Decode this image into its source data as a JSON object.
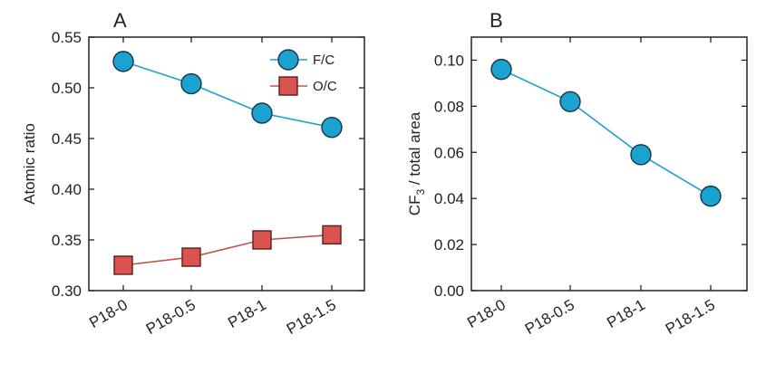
{
  "chart_data": [
    {
      "type": "line",
      "panel_label": "A",
      "ylabel": "Atomic ratio",
      "categories": [
        "P18-0",
        "P18-0.5",
        "P18-1",
        "P18-1.5"
      ],
      "ylim": [
        0.3,
        0.55
      ],
      "yticks": [
        0.3,
        0.35,
        0.4,
        0.45,
        0.5,
        0.55
      ],
      "ytick_labels": [
        "0.30",
        "0.35",
        "0.40",
        "0.45",
        "0.50",
        "0.55"
      ],
      "grid": false,
      "legend_position": "top-right",
      "series": [
        {
          "name": "F/C",
          "marker": "circle",
          "color": "#1aa3d0",
          "edge_color": "#1b3347",
          "values": [
            0.526,
            0.504,
            0.475,
            0.461
          ]
        },
        {
          "name": "O/C",
          "marker": "square",
          "color": "#d9534f",
          "edge_color": "#5a1f1c",
          "line_color": "#c2504c",
          "values": [
            0.325,
            0.333,
            0.35,
            0.355
          ]
        }
      ]
    },
    {
      "type": "line",
      "panel_label": "B",
      "ylabel_main": "CF",
      "ylabel_sub": "3",
      "ylabel_rest": " / total area",
      "categories": [
        "P18-0",
        "P18-0.5",
        "P18-1",
        "P18-1.5"
      ],
      "ylim": [
        0.0,
        0.11
      ],
      "yticks": [
        0.0,
        0.02,
        0.04,
        0.06,
        0.08,
        0.1
      ],
      "ytick_labels": [
        "0.00",
        "0.02",
        "0.04",
        "0.06",
        "0.08",
        "0.10"
      ],
      "grid": false,
      "series": [
        {
          "name": "CF3 / total area",
          "marker": "circle",
          "color": "#1aa3d0",
          "edge_color": "#1b3347",
          "values": [
            0.096,
            0.082,
            0.059,
            0.041
          ]
        }
      ]
    }
  ]
}
